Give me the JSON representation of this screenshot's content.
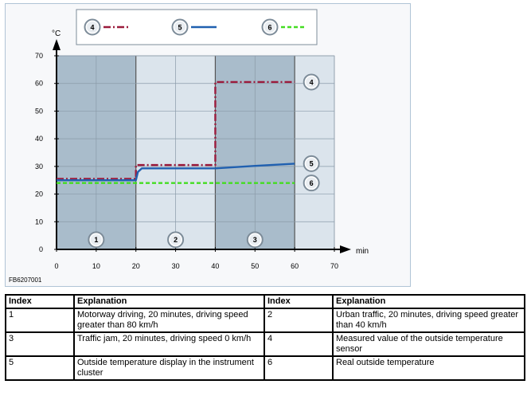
{
  "chart_data": {
    "type": "line",
    "x": [
      0,
      10,
      20,
      30,
      40,
      50,
      60,
      70
    ],
    "xlabel": "min",
    "ylabel": "°C",
    "xlim": [
      0,
      70
    ],
    "ylim": [
      0,
      70
    ],
    "xticks": [
      "0",
      "10",
      "20",
      "30",
      "40",
      "50",
      "60",
      "70"
    ],
    "yticks": [
      "0",
      "10",
      "20",
      "30",
      "40",
      "50",
      "60",
      "70"
    ],
    "grid": true,
    "legend_position": "top",
    "figure_id": "FB6207001",
    "phases": [
      {
        "label": "1",
        "from": 0,
        "to": 20,
        "color": "#a9bccb"
      },
      {
        "label": "2",
        "from": 20,
        "to": 40,
        "color": "#dbe4ec"
      },
      {
        "label": "3",
        "from": 40,
        "to": 60,
        "color": "#a9bccb"
      },
      {
        "label": "",
        "from": 60,
        "to": 70,
        "color": "#dbe4ec"
      }
    ],
    "series": [
      {
        "name": "4",
        "style": "dash-dot",
        "color": "#9b1b3c",
        "points": [
          [
            0,
            25.5
          ],
          [
            20,
            25.5
          ],
          [
            20,
            30.5
          ],
          [
            40,
            30.5
          ],
          [
            40,
            60.5
          ],
          [
            60,
            60.5
          ]
        ]
      },
      {
        "name": "5",
        "style": "solid",
        "color": "#2060b0",
        "points": [
          [
            0,
            25
          ],
          [
            20,
            25
          ],
          [
            20.5,
            28
          ],
          [
            21.5,
            29.3
          ],
          [
            40,
            29.3
          ],
          [
            50,
            30.2
          ],
          [
            60,
            31
          ]
        ]
      },
      {
        "name": "6",
        "style": "dashed",
        "color": "#44dd22",
        "points": [
          [
            0,
            24
          ],
          [
            60,
            24
          ]
        ]
      }
    ],
    "annotations": [
      {
        "label": "4",
        "x": 60,
        "y": 60.5
      },
      {
        "label": "5",
        "x": 60,
        "y": 31
      },
      {
        "label": "6",
        "x": 60,
        "y": 24
      }
    ]
  },
  "table": {
    "headers": [
      "Index",
      "Explanation",
      "Index",
      "Explanation"
    ],
    "rows": [
      [
        "1",
        "Motorway driving, 20 minutes, driving speed greater than 80 km/h",
        "2",
        "Urban traffic, 20 minutes, driving speed greater than 40 km/h"
      ],
      [
        "3",
        "Traffic jam, 20 minutes, driving speed 0 km/h",
        "4",
        "Measured value of the outside temperature sensor"
      ],
      [
        "5",
        "Outside temperature display in the instrument cluster",
        "6",
        "Real outside temperature"
      ]
    ]
  }
}
